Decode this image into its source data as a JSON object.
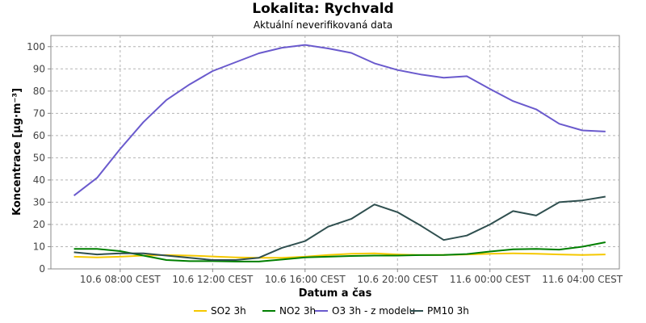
{
  "chart_data": {
    "type": "line",
    "title": "Lokalita: Rychvald",
    "subtitle": "Aktuální neverifikovaná data",
    "xlabel": "Datum a čas",
    "ylabel": "Koncentrace [µg·m⁻³]",
    "ylim": [
      0,
      105
    ],
    "yticks": [
      0,
      10,
      20,
      30,
      40,
      50,
      60,
      70,
      80,
      90,
      100
    ],
    "xlim": [
      5,
      29.6
    ],
    "xticks": [
      {
        "t": 8,
        "label": "10.6 08:00 CEST"
      },
      {
        "t": 12,
        "label": "10.6 12:00 CEST"
      },
      {
        "t": 16,
        "label": "10.6 16:00 CEST"
      },
      {
        "t": 20,
        "label": "10.6 20:00 CEST"
      },
      {
        "t": 24,
        "label": "11.6 00:00 CEST"
      },
      {
        "t": 28,
        "label": "11.6 04:00 CEST"
      }
    ],
    "x": [
      6,
      7,
      8,
      9,
      10,
      11,
      12,
      13,
      14,
      15,
      16,
      17,
      18,
      19,
      20,
      21,
      22,
      23,
      24,
      25,
      26,
      27,
      28,
      29
    ],
    "grid": true,
    "legend": "bottom",
    "series": [
      {
        "name": "SO2 3h",
        "color": "#f5c800",
        "values": [
          5.5,
          5.2,
          5.5,
          6,
          6.2,
          6,
          5.6,
          5.2,
          5,
          5,
          5.5,
          6.3,
          6.8,
          7,
          6.5,
          6.2,
          6.3,
          6.5,
          6.8,
          7,
          6.8,
          6.5,
          6.3,
          6.5
        ]
      },
      {
        "name": "NO2 3h",
        "color": "#007f00",
        "values": [
          9,
          9,
          8,
          6,
          4,
          3.5,
          3.5,
          3.3,
          3.3,
          4.2,
          5.2,
          5.5,
          5.8,
          6,
          6,
          6.2,
          6.3,
          6.7,
          7.8,
          8.8,
          9,
          8.7,
          10,
          12
        ]
      },
      {
        "name": "O3 3h - z modelu",
        "color": "#6a5acd",
        "values": [
          33,
          41,
          54,
          66,
          76,
          83,
          89,
          93,
          97,
          99.5,
          100.8,
          99.2,
          97.2,
          92.5,
          89.5,
          87.5,
          86,
          86.7,
          81,
          75.5,
          71.8,
          65.3,
          62.3,
          61.8
        ]
      },
      {
        "name": "PM10 3h",
        "color": "#2f4f4f",
        "values": [
          7.5,
          6.5,
          7,
          7,
          6,
          5,
          4,
          4,
          5,
          9.5,
          12.5,
          19,
          22.5,
          29,
          25.5,
          19.5,
          13,
          15,
          20,
          26,
          24,
          30,
          30.8,
          32.5
        ]
      }
    ]
  }
}
